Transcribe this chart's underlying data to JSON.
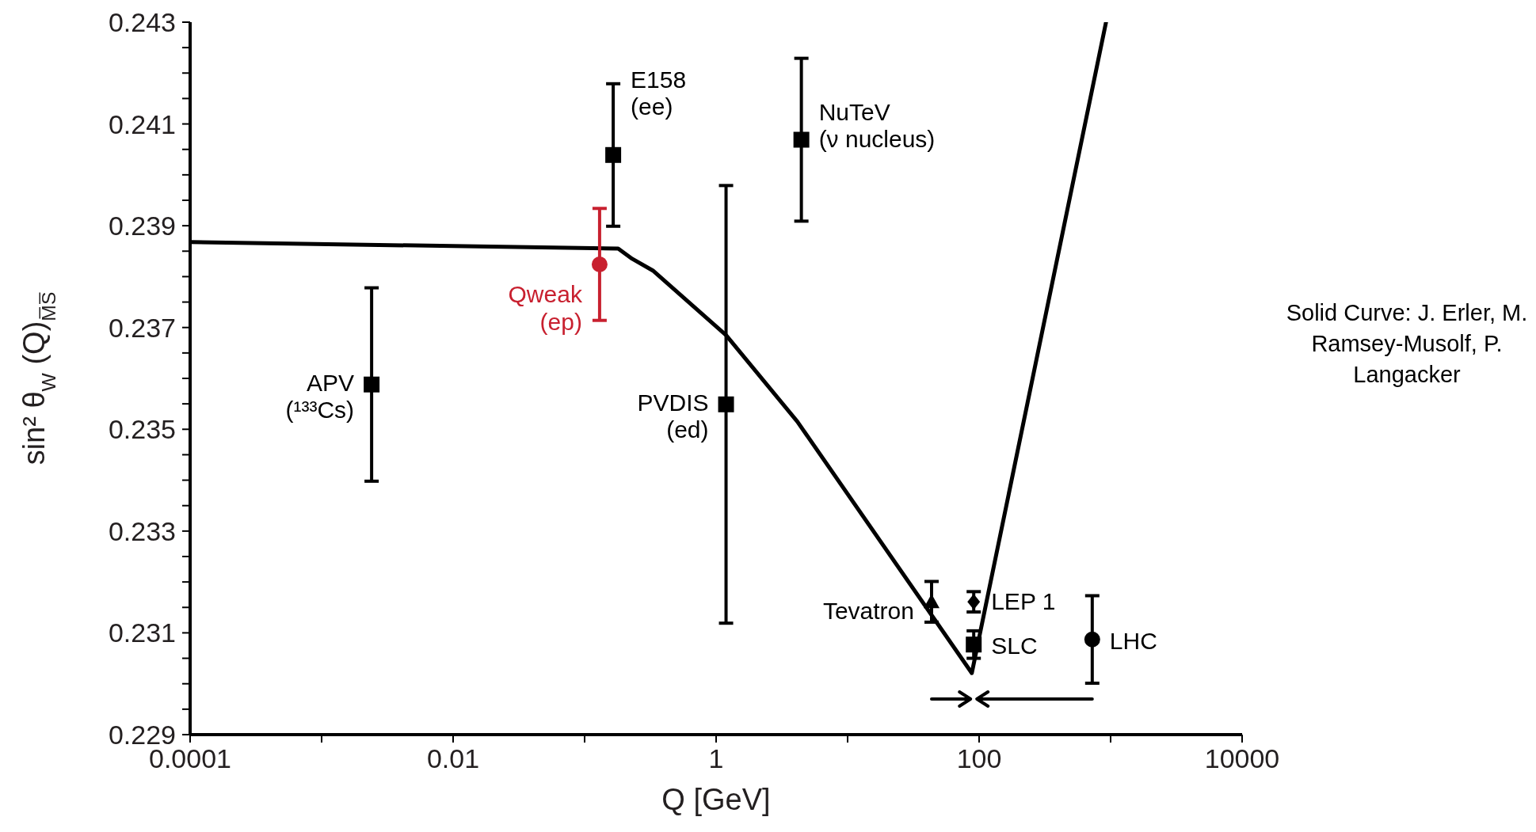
{
  "chart_data": {
    "type": "scatter",
    "xlabel": "Q [GeV]",
    "ylabel": "sin² θ$_{W}$ (Q)$_{M̅S̅}$",
    "log": "x",
    "xlim": [
      0.0001,
      10000
    ],
    "ylim": [
      0.229,
      0.243
    ],
    "xticks": [
      0.0001,
      {
        "value": 0.001,
        "label": null
      },
      0.01,
      {
        "value": 0.1,
        "label": null
      },
      1,
      {
        "value": 10,
        "label": null
      },
      100,
      {
        "value": 1000,
        "label": null
      },
      10000
    ],
    "yticks": [
      0.229,
      {
        "value": 0.2295,
        "label": null
      },
      {
        "value": 0.23,
        "label": null
      },
      {
        "value": 0.2305,
        "label": null
      },
      0.231,
      {
        "value": 0.2315,
        "label": null
      },
      {
        "value": 0.232,
        "label": null
      },
      {
        "value": 0.2325,
        "label": null
      },
      0.233,
      {
        "value": 0.2335,
        "label": null
      },
      {
        "value": 0.234,
        "label": null
      },
      {
        "value": 0.2345,
        "label": null
      },
      0.235,
      {
        "value": 0.2355,
        "label": null
      },
      {
        "value": 0.236,
        "label": null
      },
      {
        "value": 0.2365,
        "label": null
      },
      0.237,
      {
        "value": 0.2375,
        "label": null
      },
      {
        "value": 0.238,
        "label": null
      },
      {
        "value": 0.2385,
        "label": null
      },
      0.239,
      {
        "value": 0.2395,
        "label": null
      },
      {
        "value": 0.24,
        "label": null
      },
      {
        "value": 0.2405,
        "label": null
      },
      0.241,
      {
        "value": 0.2415,
        "label": null
      },
      {
        "value": 0.242,
        "label": null
      },
      {
        "value": 0.2425,
        "label": null
      },
      0.243
    ],
    "annotations": [
      "Solid Curve: J. Erler, M. Ramsey-Musolf, P. Langacker"
    ],
    "series": [
      {
        "type": "line",
        "color": "#000000",
        "x": [
          0.0001,
          0.18,
          0.23,
          0.33,
          1.19,
          4.15,
          88,
          923
        ],
        "values": [
          0.23868,
          0.23855,
          0.23835,
          0.23812,
          0.23685,
          0.23515,
          0.23021,
          0.243
        ]
      },
      {
        "name": "APV (¹³³Cs)",
        "color": "#000000",
        "marker": "square",
        "x": [
          0.0024
        ],
        "values": [
          0.23588
        ],
        "errors": [
          0.0019
        ]
      },
      {
        "name": "Qweak (ep)",
        "color": "#c8202f",
        "marker": "circle",
        "x": [
          0.13
        ],
        "values": [
          0.23824
        ],
        "errors": [
          0.0011
        ]
      },
      {
        "name": "E158 (ee)",
        "color": "#000000",
        "marker": "square",
        "x": [
          0.165
        ],
        "values": [
          0.24039
        ],
        "errors": [
          0.0014
        ]
      },
      {
        "name": "PVDIS (ed)",
        "color": "#000000",
        "marker": "square",
        "x": [
          1.19
        ],
        "values": [
          0.23549
        ],
        "errors": [
          0.0043
        ]
      },
      {
        "name": "NuTeV (ν nucleus)",
        "color": "#000000",
        "marker": "square",
        "x": [
          4.45
        ],
        "values": [
          0.24069
        ],
        "errors": [
          0.0016
        ]
      },
      {
        "name": "Tevatron",
        "color": "#000000",
        "marker": "triangle",
        "x": [
          43.5
        ],
        "values": [
          0.23161
        ],
        "errors": [
          0.0004
        ]
      },
      {
        "name": "LEP 1",
        "color": "#000000",
        "marker": "diamond",
        "x": [
          91
        ],
        "values": [
          0.23161
        ],
        "errors": [
          0.0002
        ]
      },
      {
        "name": "SLC",
        "color": "#000000",
        "marker": "square",
        "x": [
          91
        ],
        "values": [
          0.23077
        ],
        "errors": [
          0.00027
        ]
      },
      {
        "name": "LHC",
        "color": "#000000",
        "marker": "circle",
        "x": [
          725
        ],
        "values": [
          0.23087
        ],
        "errors": [
          0.00086
        ]
      }
    ]
  }
}
